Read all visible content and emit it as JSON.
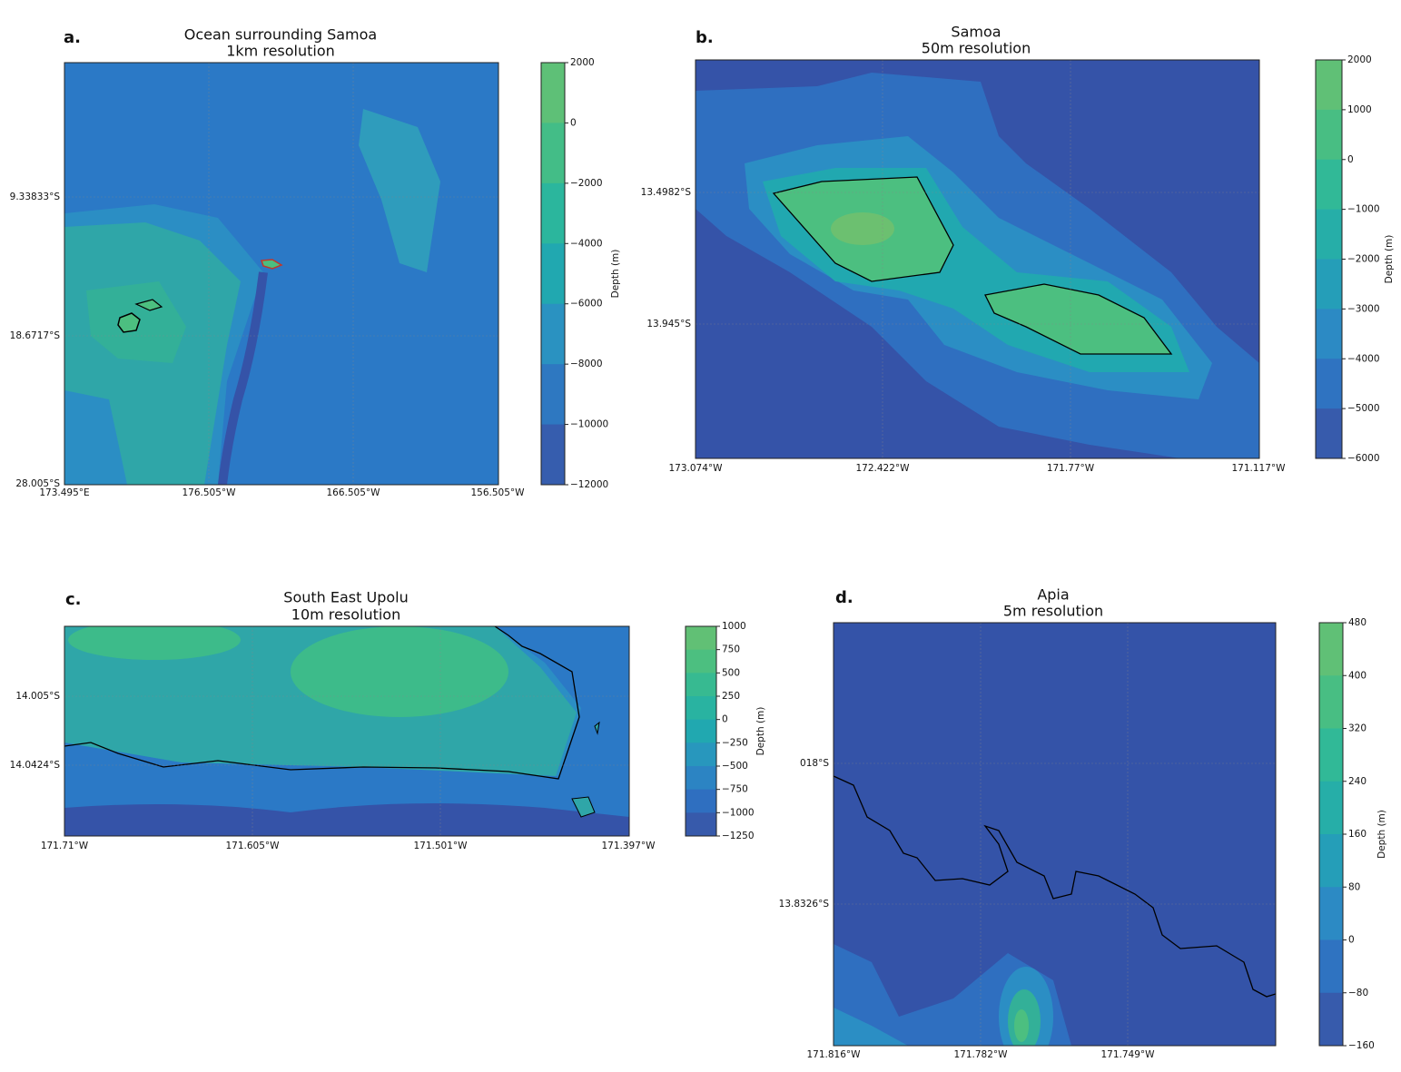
{
  "colormap": [
    "#3b4fa0",
    "#2f6fc0",
    "#2b8ec4",
    "#21a8b0",
    "#2db89a",
    "#4cbf80",
    "#6cc070"
  ],
  "panels": [
    {
      "label": "a.",
      "title": [
        "Ocean surrounding Samoa",
        "1km resolution"
      ],
      "lat_labels": [
        "9.33833°S",
        "18.6717°S",
        "28.005°S"
      ],
      "lon_labels": [
        "173.495°E",
        "176.505°W",
        "166.505°W",
        "156.505°W"
      ],
      "colorbar": {
        "label": "Depth (m)",
        "clim": [
          -12000,
          2000
        ],
        "ticks": [
          2000,
          0,
          {
            "value": -2000,
            "label": "−2000"
          },
          {
            "value": -4000,
            "label": "−4000"
          },
          {
            "value": -6000,
            "label": "−6000"
          },
          {
            "value": -8000,
            "label": "−8000"
          },
          {
            "value": -10000,
            "label": "−10000"
          },
          {
            "value": -12000,
            "label": "−12000"
          }
        ]
      }
    },
    {
      "label": "b.",
      "title": [
        "Samoa",
        "50m resolution"
      ],
      "lat_labels": [
        "13.4982°S",
        "13.945°S"
      ],
      "lon_labels": [
        "173.074°W",
        "172.422°W",
        "171.77°W",
        "171.117°W"
      ],
      "colorbar": {
        "label": "Depth (m)",
        "clim": [
          -6000,
          2000
        ],
        "ticks": [
          2000,
          1000,
          0,
          {
            "value": -1000,
            "label": "−1000"
          },
          {
            "value": -2000,
            "label": "−2000"
          },
          {
            "value": -3000,
            "label": "−3000"
          },
          {
            "value": -4000,
            "label": "−4000"
          },
          {
            "value": -5000,
            "label": "−5000"
          },
          {
            "value": -6000,
            "label": "−6000"
          }
        ]
      }
    },
    {
      "label": "c.",
      "title": [
        "South East Upolu",
        "10m resolution"
      ],
      "lat_labels": [
        "14.005°S",
        "14.0424°S"
      ],
      "lon_labels": [
        "171.71°W",
        "171.605°W",
        "171.501°W",
        "171.397°W"
      ],
      "colorbar": {
        "label": "Depth (m)",
        "clim": [
          -1250,
          1000
        ],
        "ticks": [
          1000,
          750,
          500,
          250,
          0,
          {
            "value": -250,
            "label": "−250"
          },
          {
            "value": -500,
            "label": "−500"
          },
          {
            "value": -750,
            "label": "−750"
          },
          {
            "value": -1000,
            "label": "−1000"
          },
          {
            "value": -1250,
            "label": "−1250"
          }
        ]
      }
    },
    {
      "label": "d.",
      "title": [
        "Apia",
        "5m resolution"
      ],
      "lat_labels": [
        "018°S",
        "13.8326°S"
      ],
      "lon_labels": [
        "171.816°W",
        "171.782°W",
        "171.749°W"
      ],
      "colorbar": {
        "label": "Depth (m)",
        "clim": [
          -160,
          480
        ],
        "ticks": [
          480,
          400,
          320,
          240,
          160,
          80,
          0,
          {
            "value": -80,
            "label": "−80"
          },
          {
            "value": -160,
            "label": "−160"
          }
        ]
      }
    }
  ]
}
